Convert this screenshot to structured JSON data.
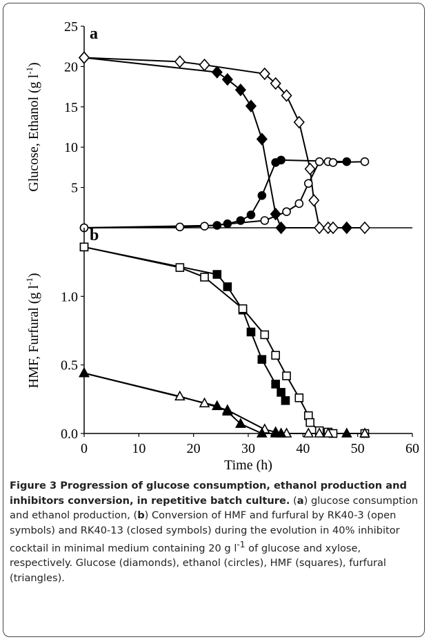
{
  "chart_data": [
    {
      "type": "line",
      "panel_label": "a",
      "ylabel": {
        "text": "Glucose, Ethanol (g l",
        "sup": "-1",
        "end": ")"
      },
      "xlim": [
        0,
        60
      ],
      "ylim": [
        0,
        25
      ],
      "yticks": [
        5,
        10,
        15,
        20,
        25
      ],
      "series": [
        {
          "marker": "diamond",
          "filled": true,
          "color": "#000000",
          "x": [
            0,
            24.3,
            26.2,
            28.6,
            30.5,
            32.5,
            35,
            36,
            48
          ],
          "values": [
            21.1,
            19.3,
            18.4,
            17.1,
            15.1,
            11,
            1.7,
            0,
            0
          ]
        },
        {
          "marker": "circle",
          "filled": true,
          "color": "#000000",
          "x": [
            0,
            24.3,
            26.2,
            28.6,
            30.5,
            32.5,
            35,
            36,
            48
          ],
          "values": [
            0,
            0.3,
            0.5,
            0.9,
            1.6,
            4,
            8.1,
            8.4,
            8.2
          ]
        },
        {
          "marker": "diamond",
          "filled": false,
          "color": "#000000",
          "x": [
            0,
            17.5,
            22,
            33,
            35,
            37,
            39.3,
            41.3,
            42,
            43,
            44.6,
            45.5,
            51.3
          ],
          "values": [
            21.1,
            20.6,
            20.2,
            19.1,
            17.9,
            16.4,
            13.1,
            7.3,
            3.4,
            0,
            0,
            0,
            0
          ]
        },
        {
          "marker": "circle",
          "filled": false,
          "color": "#000000",
          "x": [
            0,
            17.5,
            22,
            33,
            37,
            39.3,
            41,
            43,
            44.6,
            45.5,
            51.3
          ],
          "values": [
            0,
            0.1,
            0.2,
            0.9,
            2,
            3,
            5.5,
            8.2,
            8.2,
            8.1,
            8.2
          ]
        }
      ]
    },
    {
      "type": "line",
      "panel_label": "b",
      "ylabel": {
        "text": "HMF, Furfural (g l",
        "sup": "-1",
        "end": ")"
      },
      "xlabel": "Time (h)",
      "xlim": [
        0,
        60
      ],
      "xticks": [
        0,
        10,
        20,
        30,
        40,
        50,
        60
      ],
      "ylim": [
        0,
        1.5
      ],
      "yticks": [
        {
          "value": 0,
          "label": "0.0"
        },
        {
          "value": 0.5,
          "label": "0.5"
        },
        {
          "value": 1,
          "label": "1.0"
        }
      ],
      "series": [
        {
          "marker": "square",
          "filled": true,
          "color": "#000000",
          "x": [
            0,
            24.3,
            26.2,
            29,
            30.5,
            32.5,
            35,
            36,
            36.8
          ],
          "values": [
            1.36,
            1.16,
            1.07,
            0.9,
            0.74,
            0.54,
            0.36,
            0.3,
            0.24
          ]
        },
        {
          "marker": "square",
          "filled": false,
          "color": "#000000",
          "x": [
            0,
            17.5,
            22,
            29,
            33,
            35,
            37,
            39.3,
            41,
            41.3,
            43,
            44.6,
            45.5,
            51.3
          ],
          "values": [
            1.36,
            1.21,
            1.14,
            0.91,
            0.72,
            0.57,
            0.42,
            0.26,
            0.13,
            0.08,
            0.02,
            0.01,
            0,
            0
          ]
        },
        {
          "marker": "triangle",
          "filled": false,
          "color": "#000000",
          "x": [
            0,
            17.5,
            22,
            26.2,
            33,
            35,
            37,
            41,
            43,
            44.6,
            51.3
          ],
          "values": [
            0.44,
            0.27,
            0.22,
            0.17,
            0.03,
            0.01,
            0,
            0,
            0,
            0,
            0
          ]
        },
        {
          "marker": "triangle",
          "filled": true,
          "color": "#000000",
          "x": [
            0,
            24.3,
            26.2,
            28.6,
            32.5,
            35,
            36,
            48
          ],
          "values": [
            0.44,
            0.2,
            0.16,
            0.07,
            0,
            0,
            0,
            0
          ]
        }
      ]
    }
  ],
  "caption": {
    "title": "Figure 3 Progression of glucose consumption, ethanol production and inhibitors conversion, in repetitive batch culture.",
    "parts": [
      "(",
      "a",
      ") glucose consumption and ethanol production, (",
      "b",
      ") Conversion of HMF and furfural by RK40-3 (open symbols) and RK40-13 (closed symbols) during the evolution in 40% inhibitor cocktail in minimal medium containing 20 g l",
      "-1",
      " of glucose and xylose, respectively. Glucose (diamonds), ethanol (circles), HMF (squares), furfural (triangles)."
    ]
  }
}
